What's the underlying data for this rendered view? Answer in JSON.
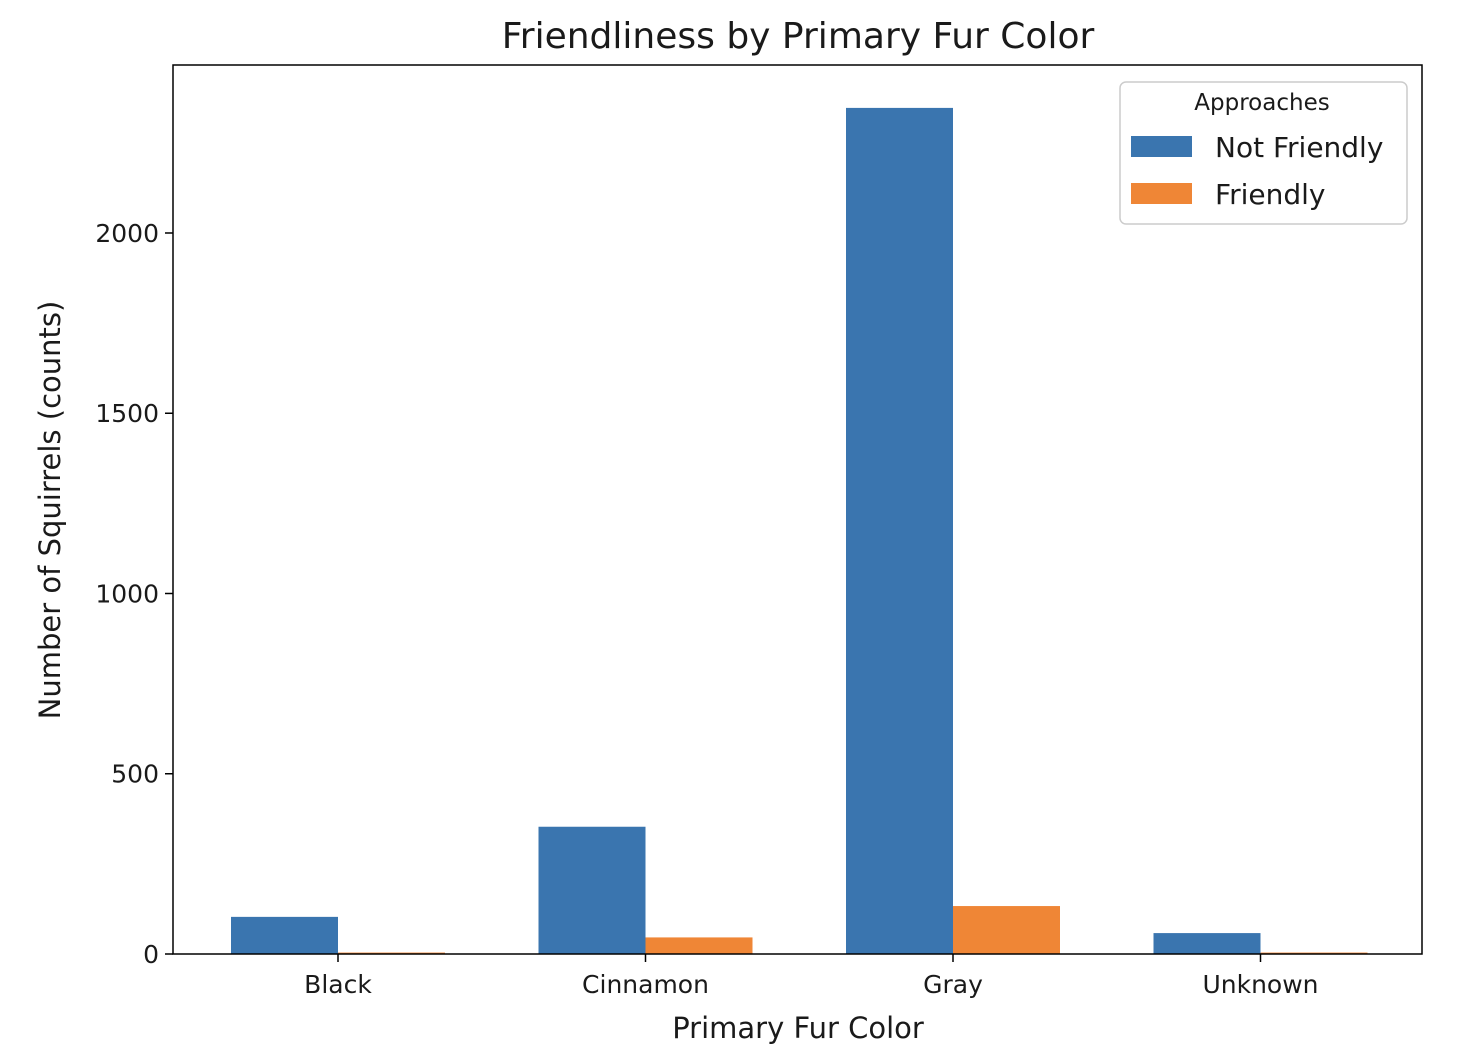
{
  "chart_data": {
    "type": "bar",
    "title": "Friendliness by Primary Fur Color",
    "xlabel": "Primary Fur Color",
    "ylabel": "Number of Squirrels (counts)",
    "categories": [
      "Black",
      "Cinnamon",
      "Gray",
      "Unknown"
    ],
    "series": [
      {
        "name": "Not Friendly",
        "values": [
          103,
          353,
          2347,
          58
        ],
        "color": "#3a75af"
      },
      {
        "name": "Friendly",
        "values": [
          4,
          46,
          133,
          4
        ],
        "color": "#ef8636"
      }
    ],
    "ylim": [
      0,
      2466
    ],
    "yticks": [
      0,
      500,
      1000,
      1500,
      2000
    ],
    "grid": false,
    "legend": {
      "title": "Approaches",
      "placement": "top-right"
    }
  }
}
